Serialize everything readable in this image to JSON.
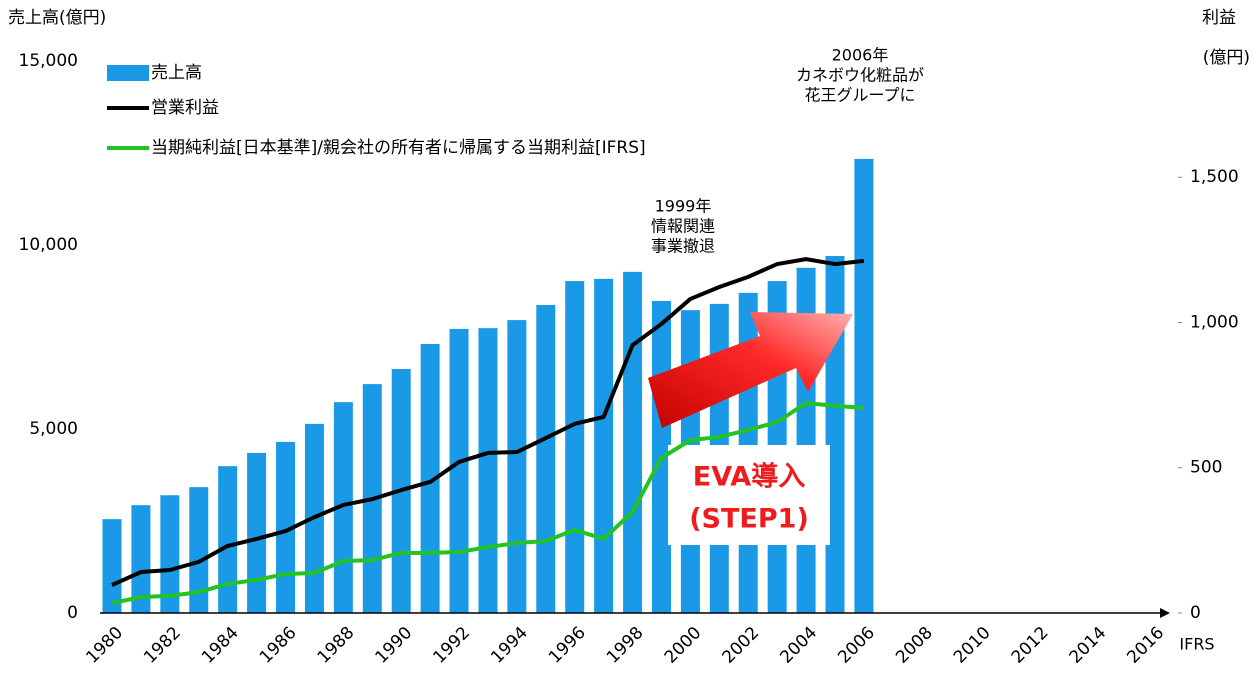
{
  "chart_data": {
    "type": "bar+line",
    "y_label": "売上高(億円)",
    "y2_label": [
      "利益",
      "(億円)"
    ],
    "categories": [
      "1980",
      null,
      "1982",
      null,
      "1984",
      null,
      "1986",
      null,
      "1988",
      null,
      "1990",
      null,
      "1992",
      null,
      "1994",
      null,
      "1996",
      null,
      "1998",
      null,
      "2000",
      null,
      "2002",
      null,
      "2004",
      null,
      "2006",
      null,
      "2008",
      null,
      "2010",
      null,
      "2012",
      null,
      "2014",
      null,
      "2016"
    ],
    "series": [
      {
        "name": "売上高",
        "type": "bar",
        "color": "#1a9ae6",
        "axis": "y",
        "values": [
          2550,
          2930,
          3200,
          3420,
          3990,
          4350,
          4650,
          5140,
          5730,
          6220,
          6630,
          7310,
          7720,
          7740,
          7960,
          8370,
          9020,
          9080,
          9270,
          8480,
          8230,
          8400,
          8700,
          9020,
          9380,
          9700,
          12340,
          null,
          null,
          null,
          null,
          null,
          null,
          null,
          null,
          null,
          null
        ]
      },
      {
        "name": "営業利益",
        "type": "line",
        "color": "#000000",
        "axis": "y2",
        "values": [
          96,
          141,
          148,
          176,
          231,
          255,
          282,
          330,
          372,
          392,
          423,
          451,
          520,
          551,
          554,
          602,
          651,
          675,
          922,
          995,
          1081,
          1122,
          1157,
          1201,
          1218,
          1201,
          1212,
          null,
          null,
          null,
          null,
          null,
          null,
          null,
          null,
          null,
          null
        ]
      },
      {
        "name": "当期純利益[日本基準]/親会社の所有者に帰属する当期利益[IFRS]",
        "type": "line",
        "color": "#22c322",
        "axis": "y2",
        "values": [
          34,
          55,
          59,
          72,
          100,
          114,
          134,
          138,
          179,
          182,
          207,
          207,
          210,
          227,
          241,
          248,
          286,
          255,
          348,
          534,
          595,
          606,
          630,
          657,
          723,
          713,
          706,
          null,
          null,
          null,
          null,
          null,
          null,
          null,
          null,
          null,
          null
        ]
      }
    ],
    "ylim": [
      0,
      15000
    ],
    "yticks": [
      0,
      {
        "value": 5000,
        "label": "5,000"
      },
      {
        "value": 10000,
        "label": "10,000"
      },
      {
        "value": 15000,
        "label": "15,000"
      }
    ],
    "y2lim": [
      0,
      1900
    ],
    "y2ticks": [
      0,
      500,
      {
        "value": 1000,
        "label": "1,000"
      },
      {
        "value": 1500,
        "label": "1,500"
      }
    ],
    "legend": "upper left",
    "grid": false,
    "annotations": [
      [
        "2006年",
        "カネボウ化粧品が",
        "花王グループに"
      ],
      [
        "1999年",
        "情報関連",
        "事業撤退"
      ],
      [
        "EVA導入",
        "(STEP1)"
      ],
      [
        "IFRS"
      ]
    ]
  }
}
